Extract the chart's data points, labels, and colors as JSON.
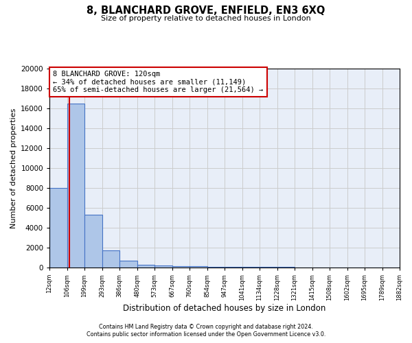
{
  "title1": "8, BLANCHARD GROVE, ENFIELD, EN3 6XQ",
  "title2": "Size of property relative to detached houses in London",
  "xlabel": "Distribution of detached houses by size in London",
  "ylabel": "Number of detached properties",
  "bar_color": "#aec6e8",
  "bar_edge_color": "#4472c4",
  "bin_edges": [
    12,
    106,
    199,
    293,
    386,
    480,
    573,
    667,
    760,
    854,
    947,
    1041,
    1134,
    1228,
    1321,
    1415,
    1508,
    1602,
    1695,
    1789,
    1882
  ],
  "bar_heights": [
    8000,
    16500,
    5300,
    1750,
    700,
    300,
    220,
    170,
    150,
    80,
    60,
    50,
    40,
    35,
    30,
    25,
    20,
    18,
    15,
    12
  ],
  "property_size": 120,
  "red_line_color": "#cc0000",
  "annotation_text": "8 BLANCHARD GROVE: 120sqm\n← 34% of detached houses are smaller (11,149)\n65% of semi-detached houses are larger (21,564) →",
  "annotation_box_color": "#ffffff",
  "annotation_box_edge_color": "#cc0000",
  "ylim": [
    0,
    20000
  ],
  "yticks": [
    0,
    2000,
    4000,
    6000,
    8000,
    10000,
    12000,
    14000,
    16000,
    18000,
    20000
  ],
  "grid_color": "#cccccc",
  "bg_color": "#e8eef8",
  "footnote1": "Contains HM Land Registry data © Crown copyright and database right 2024.",
  "footnote2": "Contains public sector information licensed under the Open Government Licence v3.0."
}
